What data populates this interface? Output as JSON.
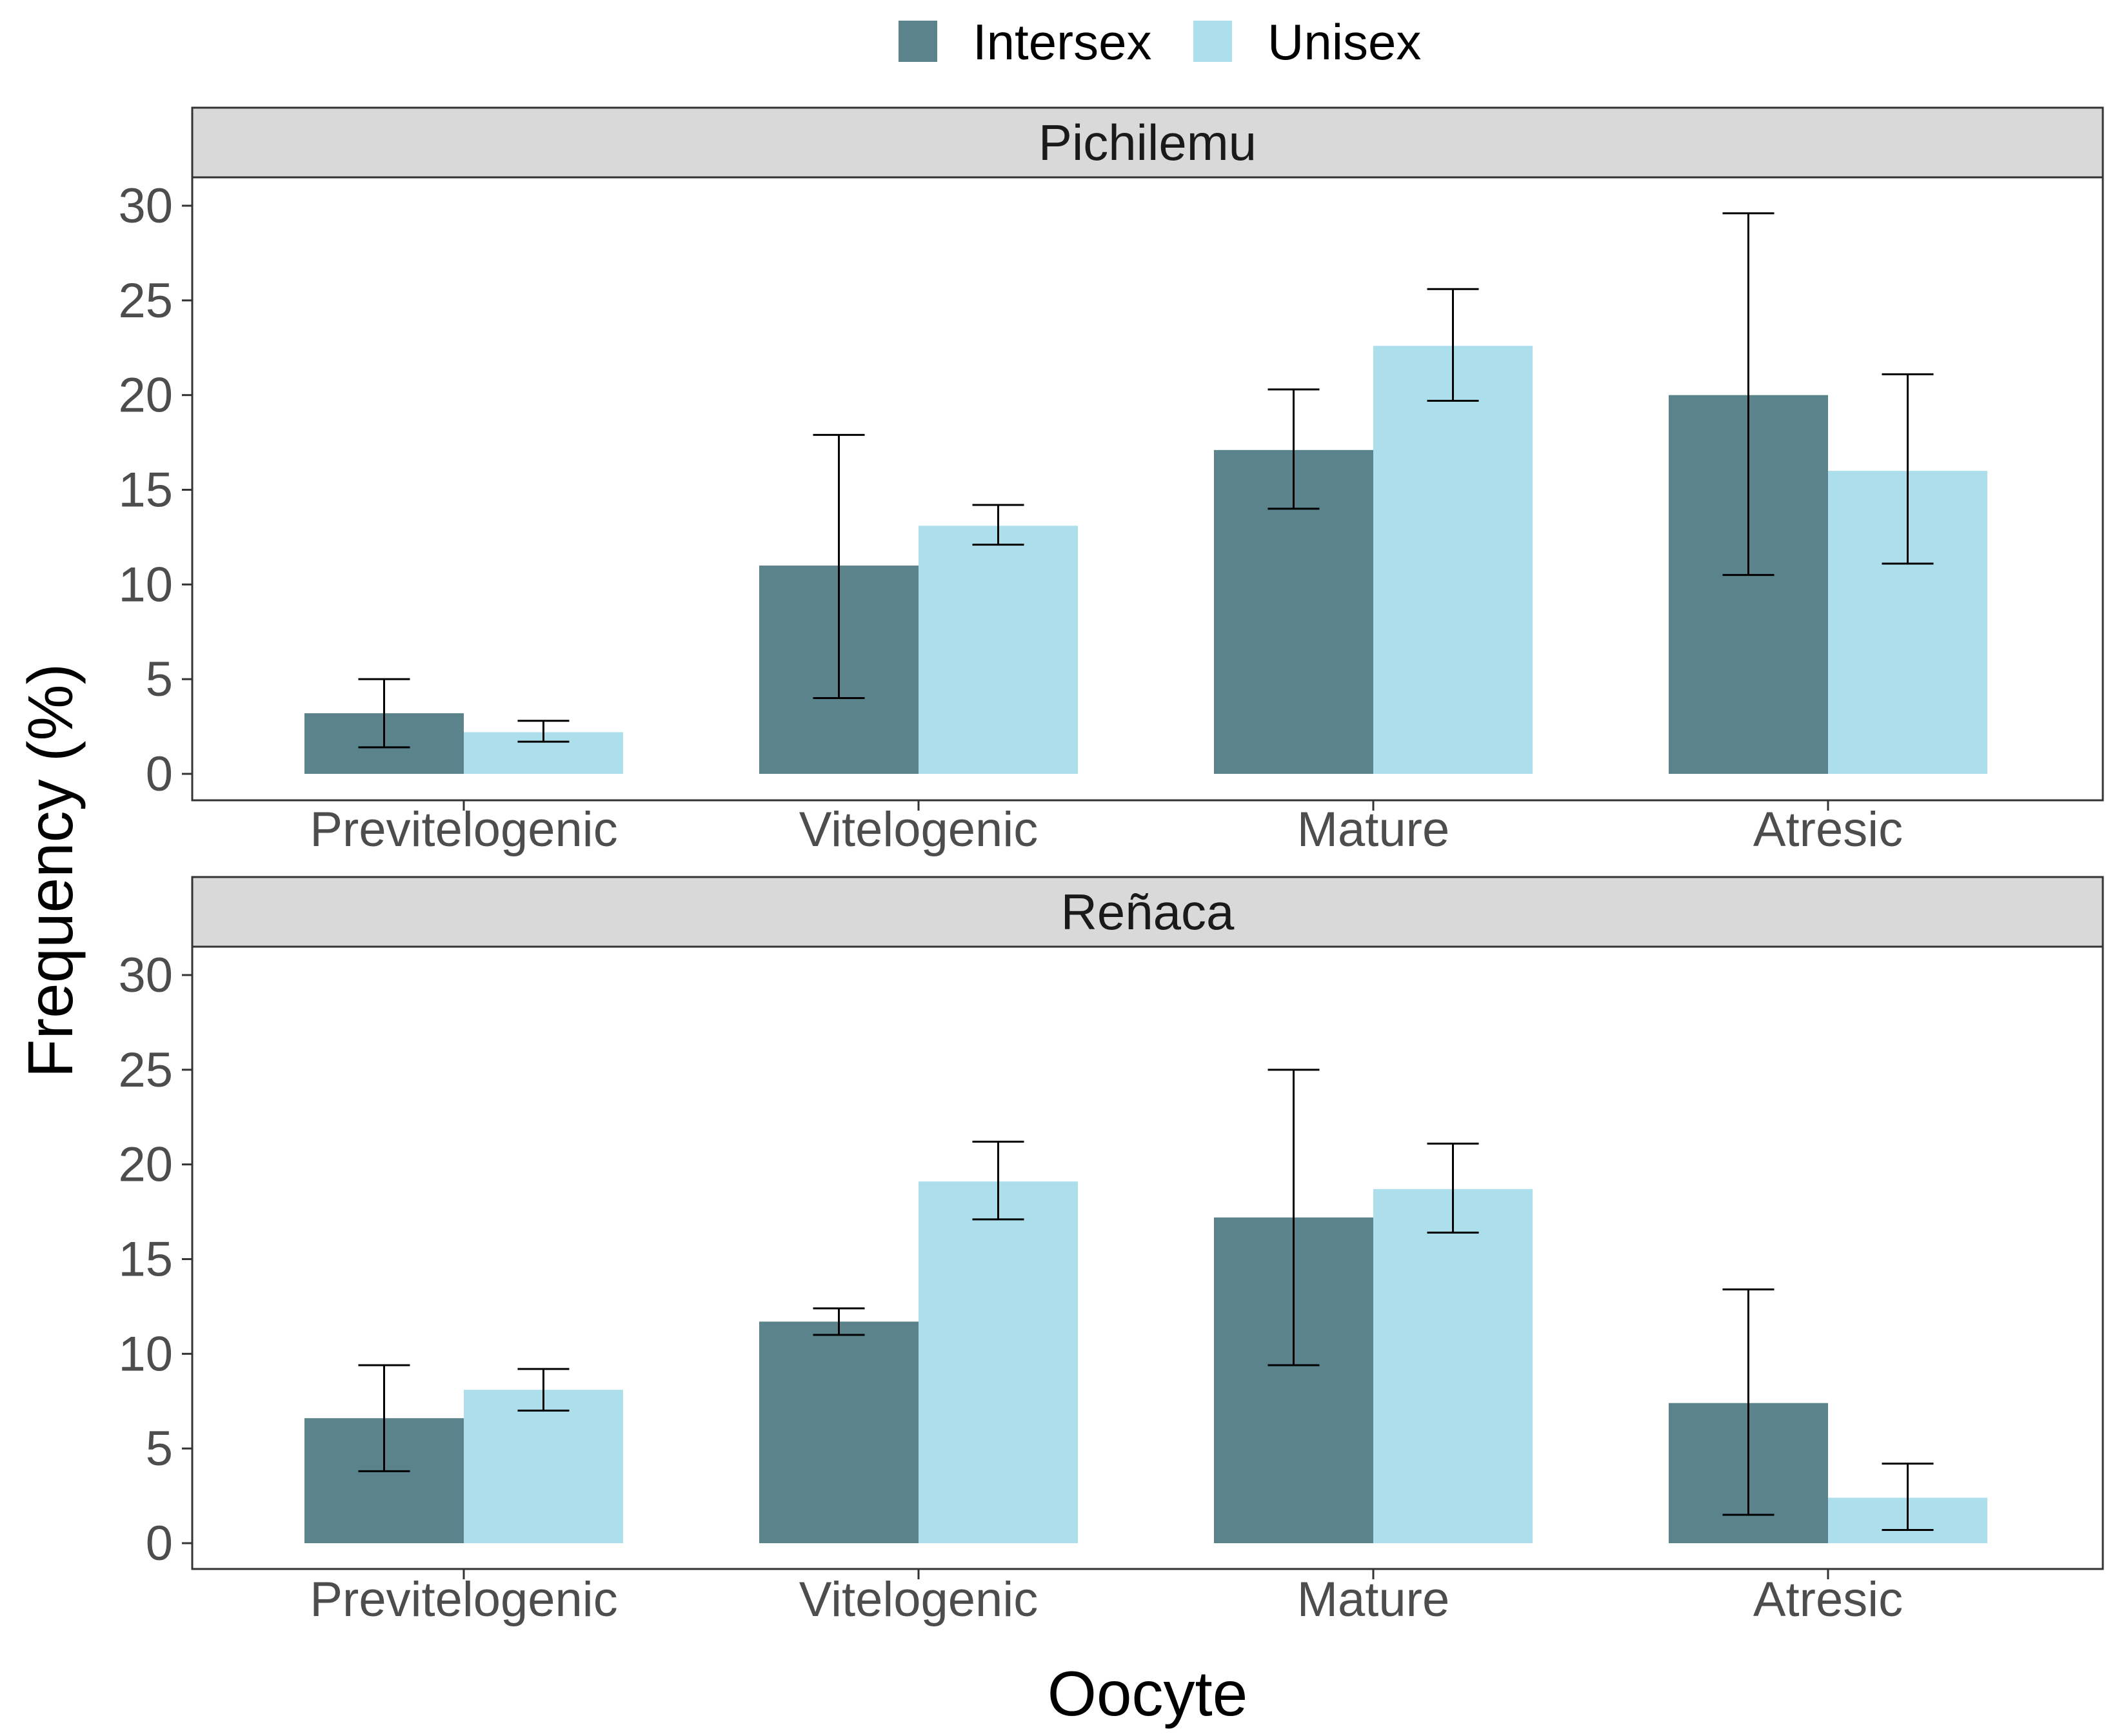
{
  "chart_data": {
    "type": "bar",
    "xlabel": "Oocyte",
    "ylabel": "Frequency (%)",
    "ylim": [
      0,
      31.5
    ],
    "yticks": [
      0,
      5,
      10,
      15,
      20,
      25,
      30
    ],
    "categories": [
      "Previtelogenic",
      "Vitelogenic",
      "Mature",
      "Atresic"
    ],
    "legend": {
      "position": "top",
      "entries": [
        {
          "name": "Intersex",
          "color": "#5a838c"
        },
        {
          "name": "Unisex",
          "color": "#addeec"
        }
      ]
    },
    "facets": [
      {
        "label": "Pichilemu",
        "series": [
          {
            "name": "Intersex",
            "values": [
              3.2,
              11.0,
              17.1,
              20.0
            ],
            "err_low": [
              1.4,
              4.0,
              14.0,
              10.5
            ],
            "err_high": [
              5.0,
              17.9,
              20.3,
              29.6
            ]
          },
          {
            "name": "Unisex",
            "values": [
              2.2,
              13.1,
              22.6,
              16.0
            ],
            "err_low": [
              1.7,
              12.1,
              19.7,
              11.1
            ],
            "err_high": [
              2.8,
              14.2,
              25.6,
              21.1
            ]
          }
        ]
      },
      {
        "label": "Reñaca",
        "series": [
          {
            "name": "Intersex",
            "values": [
              6.6,
              11.7,
              17.2,
              7.4
            ],
            "err_low": [
              3.8,
              11.0,
              9.4,
              1.5
            ],
            "err_high": [
              9.4,
              12.4,
              25.0,
              13.4
            ]
          },
          {
            "name": "Unisex",
            "values": [
              8.1,
              19.1,
              18.7,
              2.4
            ],
            "err_low": [
              7.0,
              17.1,
              16.4,
              0.7
            ],
            "err_high": [
              9.2,
              21.2,
              21.1,
              4.2
            ]
          }
        ]
      }
    ]
  }
}
